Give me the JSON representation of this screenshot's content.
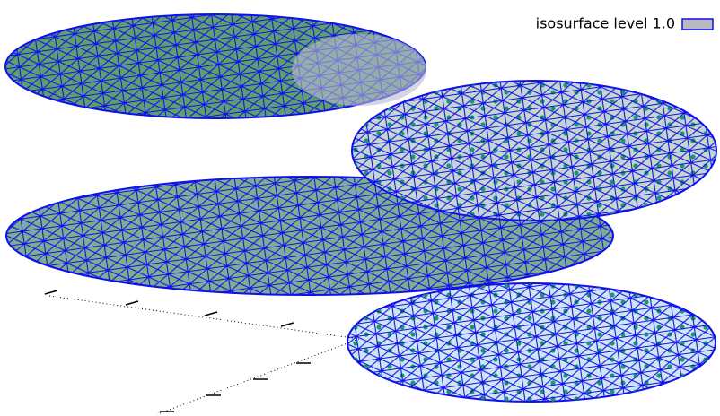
{
  "chart_data": {
    "type": "isosurface",
    "series": [
      {
        "name": "isosurface level 1.0",
        "color": "#b9b9c6",
        "edge_color": "#1010ee"
      }
    ],
    "legend": "top-right"
  }
}
